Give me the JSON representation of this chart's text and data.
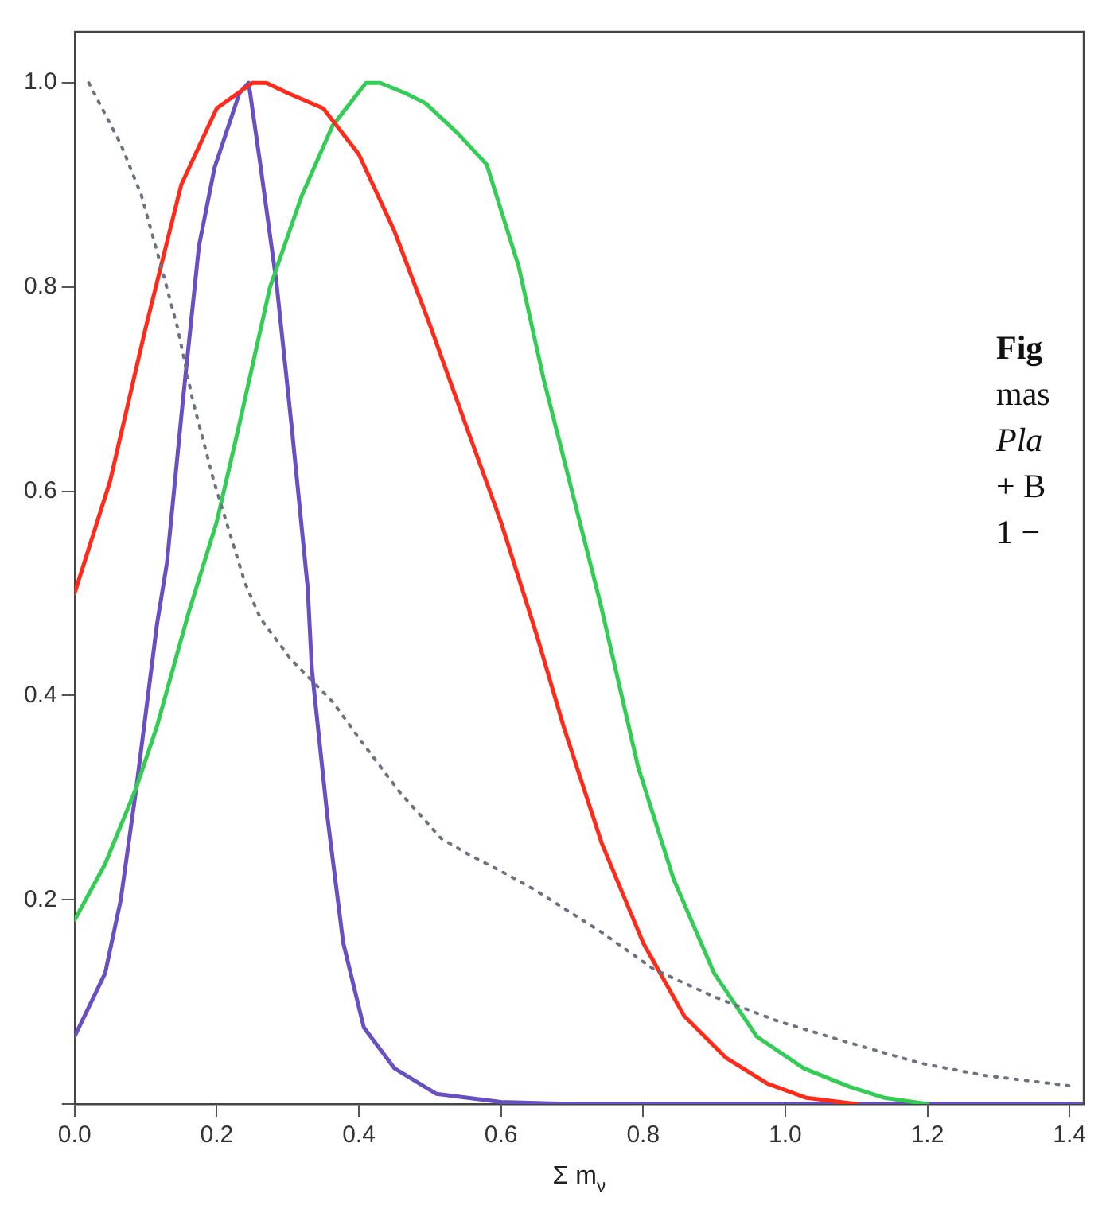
{
  "chart_data": {
    "type": "line",
    "xlabel": "Σ m$_{ν}$",
    "xlim": [
      0,
      1.42
    ],
    "xticks": [
      {
        "value": 0,
        "label": "0.0"
      },
      0.2,
      0.4,
      0.6,
      0.8,
      {
        "value": 1,
        "label": "1.0"
      },
      1.2,
      1.4
    ],
    "ylim": [
      0,
      1.05
    ],
    "yticks": [
      {
        "value": 0,
        "label": null
      },
      0.2,
      0.4,
      0.6,
      0.8,
      {
        "value": 1,
        "label": "1.0"
      }
    ],
    "grid": false,
    "legend": false,
    "marker": "none",
    "annotations": [
      "Fig",
      "mas",
      "Pla",
      "+ B",
      "1 −"
    ],
    "series": [
      {
        "color": "#6b7280",
        "line_style": "dotted",
        "x": [
          0.02,
          0.065,
          0.094,
          0.122,
          0.145,
          0.166,
          0.196,
          0.24,
          0.262,
          0.305,
          0.363,
          0.407,
          0.458,
          0.516,
          0.553,
          0.6,
          0.647,
          0.742,
          0.815,
          0.9,
          0.99,
          1.09,
          1.19,
          1.28,
          1.41
        ],
        "values": [
          1.0,
          0.94,
          0.89,
          0.82,
          0.76,
          0.69,
          0.61,
          0.51,
          0.475,
          0.435,
          0.394,
          0.352,
          0.305,
          0.26,
          0.245,
          0.228,
          0.21,
          0.168,
          0.132,
          0.105,
          0.081,
          0.06,
          0.04,
          0.028,
          0.017
        ]
      },
      {
        "color": "#ff2a1a",
        "line_style": "solid",
        "x": [
          0,
          0.05,
          0.1,
          0.15,
          0.2,
          0.25,
          0.27,
          0.3,
          0.35,
          0.4,
          0.45,
          0.5,
          0.55,
          0.6,
          0.65,
          0.688,
          0.742,
          0.8,
          0.858,
          0.917,
          0.975,
          1.03,
          1.1
        ],
        "values": [
          0.5,
          0.61,
          0.76,
          0.9,
          0.975,
          1.0,
          1.0,
          0.99,
          0.975,
          0.93,
          0.855,
          0.763,
          0.666,
          0.57,
          0.46,
          0.37,
          0.255,
          0.158,
          0.086,
          0.045,
          0.02,
          0.006,
          0
        ]
      },
      {
        "color": "#33cc55",
        "line_style": "solid",
        "x": [
          0,
          0.043,
          0.087,
          0.116,
          0.16,
          0.2,
          0.23,
          0.275,
          0.32,
          0.363,
          0.41,
          0.43,
          0.465,
          0.494,
          0.54,
          0.58,
          0.625,
          0.66,
          0.7,
          0.74,
          0.793,
          0.843,
          0.9,
          0.96,
          1.026,
          1.09,
          1.14,
          1.2
        ],
        "values": [
          0.18,
          0.235,
          0.31,
          0.37,
          0.48,
          0.57,
          0.66,
          0.8,
          0.89,
          0.958,
          1.0,
          1.0,
          0.99,
          0.98,
          0.95,
          0.92,
          0.82,
          0.71,
          0.6,
          0.49,
          0.33,
          0.22,
          0.128,
          0.066,
          0.035,
          0.017,
          0.006,
          0
        ]
      },
      {
        "color": "#6a4fc2",
        "line_style": "solid",
        "x": [
          0,
          0.043,
          0.065,
          0.087,
          0.116,
          0.13,
          0.152,
          0.175,
          0.197,
          0.232,
          0.245,
          0.262,
          0.284,
          0.306,
          0.328,
          0.334,
          0.356,
          0.378,
          0.407,
          0.45,
          0.509,
          0.6,
          0.7,
          1.0,
          1.42
        ],
        "values": [
          0.066,
          0.128,
          0.2,
          0.31,
          0.47,
          0.53,
          0.686,
          0.84,
          0.917,
          0.99,
          1.0,
          0.917,
          0.805,
          0.66,
          0.506,
          0.425,
          0.28,
          0.158,
          0.075,
          0.035,
          0.01,
          0.002,
          0,
          0,
          0
        ]
      }
    ]
  }
}
